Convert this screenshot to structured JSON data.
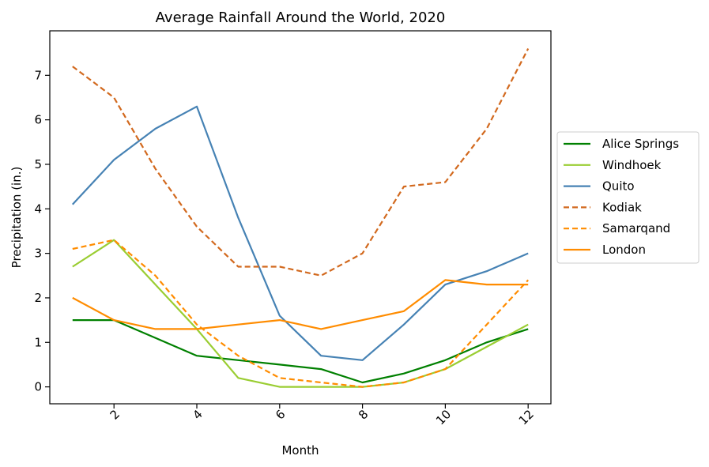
{
  "chart_data": {
    "type": "line",
    "title": "Average Rainfall Around the World, 2020",
    "xlabel": "Month",
    "ylabel": "Precipitation (in.)",
    "xlim": [
      0.45,
      12.55
    ],
    "ylim": [
      -0.38,
      8.0
    ],
    "xticks": [
      2,
      4,
      6,
      8,
      10,
      12
    ],
    "yticks": [
      0,
      1,
      2,
      3,
      4,
      5,
      6,
      7
    ],
    "xtick_rotation": 45,
    "legend_position": "center-right-outside",
    "x": [
      1,
      2,
      3,
      4,
      5,
      6,
      7,
      8,
      9,
      10,
      11,
      12
    ],
    "series": [
      {
        "name": "Alice Springs",
        "color": "#008000",
        "style": "solid",
        "values": [
          1.5,
          1.5,
          1.1,
          0.7,
          0.6,
          0.5,
          0.4,
          0.1,
          0.3,
          0.6,
          1.0,
          1.3
        ]
      },
      {
        "name": "Windhoek",
        "color": "#9acd32",
        "style": "solid",
        "values": [
          2.7,
          3.3,
          2.3,
          1.3,
          0.2,
          0.0,
          0.0,
          0.0,
          0.1,
          0.4,
          0.9,
          1.4
        ]
      },
      {
        "name": "Quito",
        "color": "#4682b4",
        "style": "solid",
        "values": [
          4.1,
          5.1,
          5.8,
          6.3,
          3.8,
          1.6,
          0.7,
          0.6,
          1.4,
          2.3,
          2.6,
          3.0
        ]
      },
      {
        "name": "Kodiak",
        "color": "#d2691e",
        "style": "dashed",
        "values": [
          7.2,
          6.5,
          4.9,
          3.6,
          2.7,
          2.7,
          2.5,
          3.0,
          4.5,
          4.6,
          5.8,
          7.6
        ]
      },
      {
        "name": "Samarqand",
        "color": "#ff8c00",
        "style": "dashed",
        "values": [
          3.1,
          3.3,
          2.5,
          1.4,
          0.7,
          0.2,
          0.1,
          0.0,
          0.1,
          0.4,
          1.4,
          2.4
        ]
      },
      {
        "name": "London",
        "color": "#ff8c00",
        "style": "solid",
        "values": [
          2.0,
          1.5,
          1.3,
          1.3,
          1.4,
          1.5,
          1.3,
          1.5,
          1.7,
          2.4,
          2.3,
          2.3
        ]
      }
    ]
  }
}
